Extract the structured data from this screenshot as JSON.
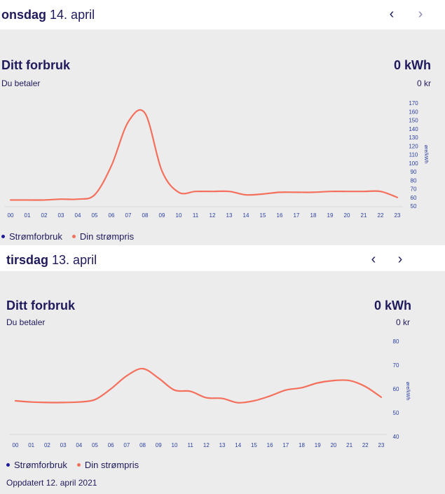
{
  "days": [
    {
      "weekday": "onsdag",
      "date": "14. april",
      "title": "Ditt forbruk",
      "kwh": "0 kWh",
      "pay_label": "Du betaler",
      "kr": "0 kr",
      "legend": [
        "Strømforbruk",
        "Din strømpris"
      ]
    },
    {
      "weekday": "tirsdag",
      "date": "13. april",
      "title": "Ditt forbruk",
      "kwh": "0 kWh",
      "pay_label": "Du betaler",
      "kr": "0 kr",
      "legend": [
        "Strømforbruk",
        "Din strømpris"
      ]
    }
  ],
  "nav": {
    "prev": "‹",
    "next": "›"
  },
  "updated": "Oppdatert 12. april 2021",
  "colors": {
    "price": "#f4705c",
    "usage": "#1e1a9c",
    "text": "#1e1a5c",
    "axis": "#2a3fa0"
  },
  "chart_data": [
    {
      "type": "line",
      "x": [
        "00",
        "01",
        "02",
        "03",
        "04",
        "05",
        "06",
        "07",
        "08",
        "09",
        "10",
        "11",
        "12",
        "13",
        "14",
        "15",
        "16",
        "17",
        "18",
        "19",
        "20",
        "21",
        "22",
        "23"
      ],
      "series": [
        {
          "name": "Din strømpris",
          "values": [
            57,
            57,
            57,
            58,
            58,
            63,
            97,
            148,
            158,
            91,
            66,
            67,
            67,
            67,
            63,
            64,
            66,
            66,
            66,
            67,
            67,
            67,
            67,
            60
          ]
        }
      ],
      "ylabel": "øre/kWh",
      "yticks": [
        50,
        60,
        70,
        80,
        90,
        100,
        110,
        120,
        130,
        140,
        150,
        160,
        170
      ],
      "ylim": [
        50,
        170
      ]
    },
    {
      "type": "line",
      "x": [
        "00",
        "01",
        "02",
        "03",
        "04",
        "05",
        "06",
        "07",
        "08",
        "09",
        "10",
        "11",
        "12",
        "13",
        "14",
        "15",
        "16",
        "17",
        "18",
        "19",
        "20",
        "21",
        "22",
        "23"
      ],
      "series": [
        {
          "name": "Din strømpris",
          "values": [
            55,
            54.5,
            54.3,
            54.3,
            54.5,
            55.5,
            60,
            65.5,
            68.5,
            64.5,
            59.5,
            59,
            56.3,
            56,
            54.2,
            55,
            57,
            59.5,
            60.5,
            62.5,
            63.5,
            63.5,
            61,
            56.5
          ]
        }
      ],
      "ylabel": "øre/kWh",
      "yticks": [
        40,
        50,
        60,
        70,
        80
      ],
      "ylim": [
        40,
        80
      ]
    }
  ]
}
